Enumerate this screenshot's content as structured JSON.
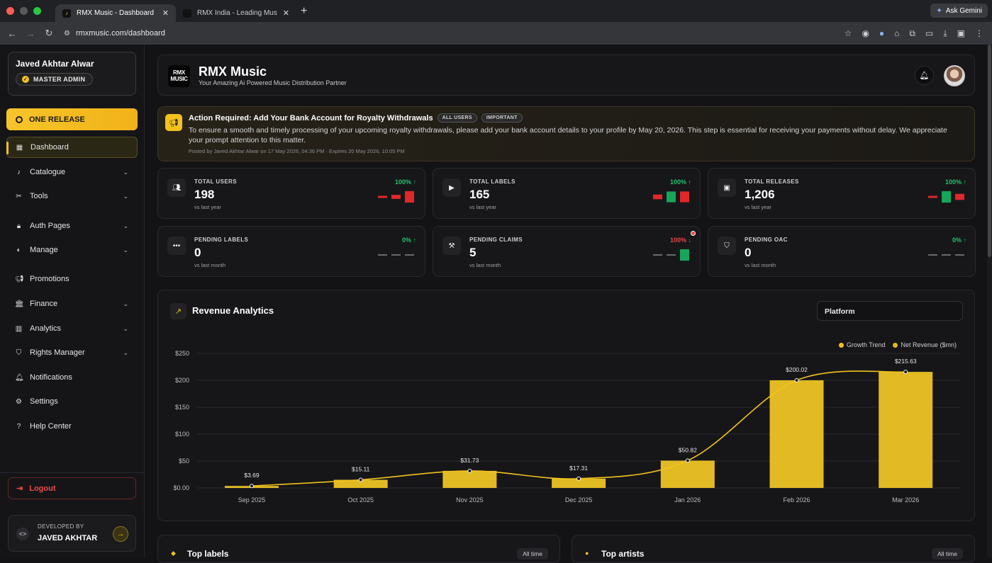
{
  "browser": {
    "tabs": [
      {
        "title": "RMX Music - Dashboard"
      },
      {
        "title": "RMX India - Leading Music D..."
      }
    ],
    "url": "rmxmusic.com/dashboard",
    "gemini_label": "Ask Gemini"
  },
  "sidebar": {
    "user_name": "Javed Akhtar Alwar",
    "role_badge": "MASTER ADMIN",
    "one_release": "ONE RELEASE",
    "items": [
      {
        "label": "Dashboard",
        "icon": "grid-icon",
        "chevron": false,
        "active": true
      },
      {
        "label": "Catalogue",
        "icon": "music-note-icon",
        "chevron": true
      },
      {
        "label": "Tools",
        "icon": "tools-icon",
        "chevron": true
      },
      {
        "label": "Auth Pages",
        "icon": "lock-icon",
        "chevron": true
      },
      {
        "label": "Manage",
        "icon": "palette-icon",
        "chevron": true
      },
      {
        "label": "Promotions",
        "icon": "megaphone-icon",
        "chevron": false
      },
      {
        "label": "Finance",
        "icon": "bank-icon",
        "chevron": true
      },
      {
        "label": "Analytics",
        "icon": "bar-chart-icon",
        "chevron": true
      },
      {
        "label": "Rights Manager",
        "icon": "shield-icon",
        "chevron": true
      },
      {
        "label": "Notifications",
        "icon": "bell-icon",
        "chevron": false
      },
      {
        "label": "Settings",
        "icon": "gear-icon",
        "chevron": false
      },
      {
        "label": "Help Center",
        "icon": "help-icon",
        "chevron": false
      }
    ],
    "logout": "Logout",
    "developed_by_label": "DEVELOPED BY",
    "developer_name": "JAVED AKHTAR"
  },
  "header": {
    "logo_text": "RMX MUSIC",
    "title": "RMX Music",
    "tagline": "Your Amazing Ai Powered Music Distribution Partner"
  },
  "notice": {
    "title": "Action Required: Add Your Bank Account for Royalty Withdrawals",
    "tags": [
      "ALL USERS",
      "IMPORTANT"
    ],
    "body": "To ensure a smooth and timely processing of your upcoming royalty withdrawals, please add your bank account details to your profile by May 20, 2026. This step is essential for receiving your payments without delay. We appreciate your prompt attention to this matter.",
    "meta": "Posted by Javed Akhtar Alwar on 17 May 2026, 04:36 PM · Expires 20 May 2026, 10:05 PM"
  },
  "stats": [
    {
      "label": "TOTAL USERS",
      "value": "198",
      "sub": "vs last year",
      "pct": "100% ↑",
      "trend": "up",
      "icon": "users-icon",
      "spark": [
        [
          "r",
          0.12
        ],
        [
          "r",
          0.3
        ],
        [
          "r",
          0.85
        ]
      ]
    },
    {
      "label": "TOTAL LABELS",
      "value": "165",
      "sub": "vs last year",
      "pct": "100% ↑",
      "trend": "up",
      "icon": "tag-icon",
      "spark": [
        [
          "r",
          0.35
        ],
        [
          "g",
          0.8
        ],
        [
          "r",
          0.8
        ]
      ]
    },
    {
      "label": "TOTAL RELEASES",
      "value": "1,206",
      "sub": "vs last year",
      "pct": "100% ↑",
      "trend": "up",
      "icon": "album-icon",
      "spark": [
        [
          "r",
          0.15
        ],
        [
          "g",
          0.85
        ],
        [
          "r",
          0.45
        ]
      ]
    },
    {
      "label": "PENDING LABELS",
      "value": "0",
      "sub": "vs last month",
      "pct": "0% ↑",
      "trend": "up",
      "icon": "dots-icon",
      "spark": [
        [
          "n",
          0.1
        ],
        [
          "n",
          0.1
        ],
        [
          "n",
          0.1
        ]
      ]
    },
    {
      "label": "PENDING CLAIMS",
      "value": "5",
      "sub": "vs last month",
      "pct": "100% ↓",
      "trend": "down",
      "icon": "gavel-icon",
      "spark": [
        [
          "n",
          0.1
        ],
        [
          "n",
          0.1
        ],
        [
          "g",
          0.85
        ]
      ],
      "alert": true
    },
    {
      "label": "PENDING OAC",
      "value": "0",
      "sub": "vs last month",
      "pct": "0% ↑",
      "trend": "up",
      "icon": "shield-check-icon",
      "spark": [
        [
          "n",
          0.1
        ],
        [
          "n",
          0.1
        ],
        [
          "n",
          0.1
        ]
      ]
    }
  ],
  "revenue": {
    "title": "Revenue Analytics",
    "platform_select": "Platform"
  },
  "chart_data": {
    "type": "bar",
    "title": "Revenue Analytics",
    "categories": [
      "Sep 2025",
      "Oct 2025",
      "Nov 2025",
      "Dec 2025",
      "Jan 2026",
      "Feb 2026",
      "Mar 2026"
    ],
    "series": [
      {
        "name": "Net Revenue ($mn)",
        "type": "bar",
        "color": "#e2bb24",
        "values": [
          3.69,
          15.11,
          31.73,
          17.31,
          50.82,
          200.02,
          215.63
        ]
      },
      {
        "name": "Growth Trend",
        "type": "line",
        "color": "#f2c11d",
        "values": [
          3.69,
          15.11,
          31.73,
          17.31,
          50.82,
          200.02,
          215.63
        ]
      }
    ],
    "data_labels": [
      "$3.69",
      "$15.11",
      "$31.73",
      "$17.31",
      "$50.82",
      "$200.02",
      "$215.63"
    ],
    "y_ticks": [
      "$0.00",
      "$50",
      "$100",
      "$150",
      "$200",
      "$250"
    ],
    "ylim": [
      0,
      250
    ],
    "grid": true,
    "legend": "top-right"
  },
  "bottom": {
    "top_labels": "Top labels",
    "top_artists": "Top artists",
    "all_time": "All time"
  }
}
